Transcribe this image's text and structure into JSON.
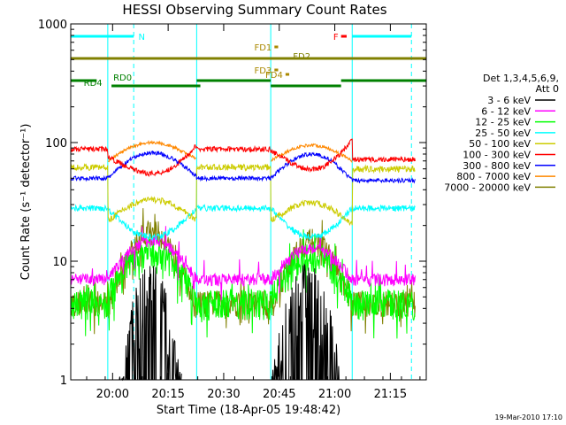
{
  "chart_data": {
    "type": "line",
    "title": "HESSI Observing Summary Count Rates",
    "xlabel": "Start Time (18-Apr-05 19:48:42)",
    "ylabel": "Count Rate (s⁻¹ detector⁻¹)",
    "yscale": "log",
    "xlim_minutes_after_1948": [
      0,
      96
    ],
    "ylim": [
      1,
      1000
    ],
    "x_tick_labels": [
      "20:00",
      "20:15",
      "20:30",
      "20:45",
      "21:00",
      "21:15"
    ],
    "y_tick_labels": [
      "1",
      "10",
      "100",
      "1000"
    ],
    "legend_header": [
      "Det 1,3,4,5,6,9,",
      "Att 0"
    ],
    "legend_position": "right",
    "series": [
      {
        "name": "3 - 6 keV",
        "color": "#000000"
      },
      {
        "name": "6 - 12 keV",
        "color": "#ff00ff"
      },
      {
        "name": "12 - 25 keV",
        "color": "#00ff00"
      },
      {
        "name": "25 - 50 keV",
        "color": "#00ffff"
      },
      {
        "name": "50 - 100 keV",
        "color": "#cccc00"
      },
      {
        "name": "100 - 300 keV",
        "color": "#ff0000"
      },
      {
        "name": "300 - 800 keV",
        "color": "#0000ff"
      },
      {
        "name": "800 - 7000 keV",
        "color": "#ff8800"
      },
      {
        "name": "7000 - 20000 keV",
        "color": "#808000"
      }
    ],
    "profiles": {
      "red_100_300": {
        "day1_ends": [
          75,
          95
        ],
        "day1_mid": 55,
        "night": 88,
        "day2_ends": [
          85,
          105
        ],
        "day2_mid": 60,
        "post": 72
      },
      "orange_800_7000": {
        "day1_ends": [
          70,
          72
        ],
        "day1_mid": 100,
        "day2_ends": [
          70,
          70
        ],
        "day2_mid": 95
      },
      "blue_300_800": {
        "day1_ends": [
          50,
          52
        ],
        "day1_mid": 82,
        "night": 50,
        "day2_ends": [
          50,
          48
        ],
        "day2_mid": 80,
        "post": 48
      },
      "yellow_50_100": {
        "day1_ends": [
          22,
          22
        ],
        "day1_mid": 33,
        "night": 62,
        "day2_ends": [
          22,
          20
        ],
        "day2_mid": 31,
        "post": 60
      },
      "cyan_25_50": {
        "day1_ends": [
          28,
          28
        ],
        "day1_mid": 16,
        "night": 28,
        "day2_ends": [
          28,
          28
        ],
        "day2_mid": 16,
        "post": 28
      },
      "magenta_6_12": {
        "day1_ends": [
          7,
          7
        ],
        "day1_mid": 15,
        "night": 7,
        "day2_ends": [
          7,
          7
        ],
        "day2_mid": 13,
        "post": 7
      },
      "green_12_25": {
        "day1_ends": [
          5,
          5
        ],
        "day1_mid": 12,
        "night": 4.5,
        "day2_ends": [
          5,
          5
        ],
        "day2_mid": 11,
        "post": 4.5
      },
      "olive_7000_20000": {
        "day1_ends": [
          4,
          4
        ],
        "day1_mid": 18,
        "night": 4.5,
        "day2_ends": [
          4,
          4
        ],
        "day2_mid": 15,
        "post": 4.5
      },
      "black_3_6": {
        "day1_mid": 8,
        "day2_mid": 8
      }
    },
    "annotations": {
      "flags": [
        {
          "label": "N",
          "color": "#00ffff",
          "row": 0,
          "segments": [
            [
              0,
              17
            ],
            [
              76,
              92
            ]
          ]
        },
        {
          "label": "F",
          "color": "#ff0000",
          "row": 0,
          "segments": [
            [
              73,
              74.5
            ]
          ]
        },
        {
          "label": "FD1",
          "color": "#aa8800",
          "row": 1,
          "segments": [
            [
              55,
              56
            ]
          ]
        },
        {
          "label": "FD2",
          "color": "#808000",
          "row": 2,
          "segments": [
            [
              0,
              96
            ]
          ]
        },
        {
          "label": "FD3",
          "color": "#aa8800",
          "row": 3,
          "segments": [
            [
              55,
              56
            ]
          ]
        },
        {
          "label": "FD4",
          "color": "#aa8800",
          "row": 4,
          "segments": [
            [
              58,
              59
            ]
          ]
        },
        {
          "label": "RD0",
          "color": "#008000",
          "row": 5,
          "segments": [
            [
              0,
              7
            ],
            [
              34,
              54
            ],
            [
              73,
              96
            ]
          ]
        },
        {
          "label": "RD4",
          "color": "#008000",
          "row": 6,
          "segments": [
            [
              11,
              35
            ],
            [
              54,
              73
            ]
          ]
        }
      ],
      "solid_vlines_cyan": [
        10,
        34,
        54,
        76
      ],
      "dashed_vlines_cyan": [
        17,
        92
      ]
    },
    "day_night": {
      "day1": [
        10,
        34
      ],
      "day2": [
        54,
        76
      ]
    }
  },
  "footer_date": "19-Mar-2010 17:10"
}
